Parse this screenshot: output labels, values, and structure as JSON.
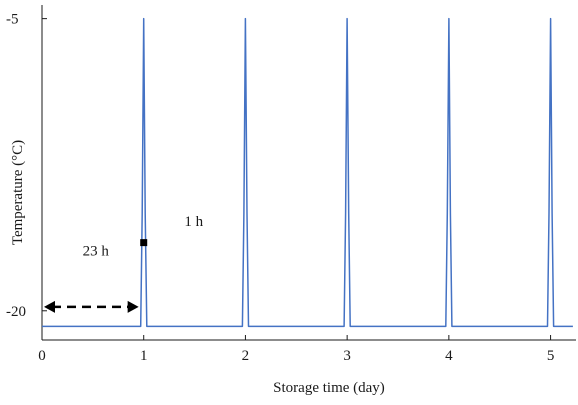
{
  "chart_data": {
    "type": "line",
    "xlabel": "Storage time (day)",
    "ylabel": "Temperature (°C)",
    "xlim": [
      0,
      5.25
    ],
    "ylim": [
      -21.5,
      -4.3
    ],
    "xticks": [
      0,
      1,
      2,
      3,
      4,
      5
    ],
    "xtick_labels": [
      "0",
      "1",
      "2",
      "3",
      "4",
      "5"
    ],
    "yticks": [
      -5,
      -20
    ],
    "ytick_labels": [
      "-5",
      "-20"
    ],
    "grid": false,
    "legend": "none",
    "series": [
      {
        "color": "#4472c4",
        "x": [
          0,
          0.97,
          0.985,
          1.0,
          1.015,
          1.03,
          1.97,
          1.985,
          2.0,
          2.015,
          2.03,
          2.97,
          2.985,
          3.0,
          3.015,
          3.03,
          3.97,
          3.985,
          4.0,
          4.015,
          4.03,
          4.97,
          4.985,
          5.0,
          5.015,
          5.03,
          5.22
        ],
        "y": [
          -20.8,
          -20.8,
          -15,
          -5,
          -15,
          -20.8,
          -20.8,
          -15,
          -5,
          -15,
          -20.8,
          -20.8,
          -15,
          -5,
          -15,
          -20.8,
          -20.8,
          -15,
          -5,
          -15,
          -20.8,
          -20.8,
          -15,
          -5,
          -15,
          -20.8,
          -20.8
        ]
      }
    ],
    "annotations": [
      {
        "text": "23 h",
        "x": 0.4,
        "y": -16.9
      },
      {
        "text": "1 h",
        "x": 1.4,
        "y": -15.4
      }
    ],
    "arrow": {
      "from_x": 0,
      "to_x": 0.97,
      "y": -19.8,
      "style": "dashed-double-arrow"
    },
    "marker": {
      "x": 1.0,
      "y": -16.5
    }
  }
}
